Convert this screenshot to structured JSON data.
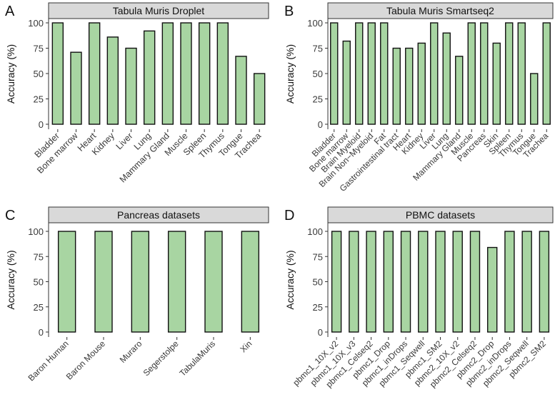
{
  "chart_data": [
    {
      "panel_label": "A",
      "type": "bar",
      "title": "Tabula Muris Droplet",
      "xlabel": "",
      "ylabel": "Accuracy (%)",
      "ylim": [
        0,
        100
      ],
      "yticks": [
        0,
        25,
        50,
        75,
        100
      ],
      "categories": [
        "Bladder",
        "Bone marrow",
        "Heart",
        "Kidney",
        "Liver",
        "Lung",
        "Mammary Gland",
        "Muscle",
        "Spleen",
        "Thymus",
        "Tongue",
        "Trachea"
      ],
      "values": [
        100,
        71,
        100,
        86,
        75,
        92,
        100,
        100,
        100,
        100,
        67,
        50
      ]
    },
    {
      "panel_label": "B",
      "type": "bar",
      "title": "Tabula Muris Smartseq2",
      "xlabel": "",
      "ylabel": "Accuracy (%)",
      "ylim": [
        0,
        100
      ],
      "yticks": [
        0,
        25,
        50,
        75,
        100
      ],
      "categories": [
        "Bladder",
        "Bone marrow",
        "Brain Myeloid",
        "Brain Non−Myeloid",
        "Fat",
        "Gastrointestinal tract",
        "Heart",
        "Kidney",
        "Liver",
        "Lung",
        "Mammary Gland",
        "Muscle",
        "Pancreas",
        "Skin",
        "Spleen",
        "Thymus",
        "Tongue",
        "Trachea"
      ],
      "values": [
        100,
        82,
        100,
        100,
        100,
        75,
        75,
        80,
        100,
        90,
        67,
        100,
        100,
        80,
        100,
        100,
        50,
        100
      ]
    },
    {
      "panel_label": "C",
      "type": "bar",
      "title": "Pancreas datasets",
      "xlabel": "",
      "ylabel": "Accuracy (%)",
      "ylim": [
        0,
        100
      ],
      "yticks": [
        0,
        25,
        50,
        75,
        100
      ],
      "categories": [
        "Baron Human",
        "Baron Mouse",
        "Muraro",
        "Segerstolpe",
        "TabulaMuris",
        "Xin"
      ],
      "values": [
        100,
        100,
        100,
        100,
        100,
        100
      ]
    },
    {
      "panel_label": "D",
      "type": "bar",
      "title": "PBMC datasets",
      "xlabel": "",
      "ylabel": "Accuracy (%)",
      "ylim": [
        0,
        100
      ],
      "yticks": [
        0,
        25,
        50,
        75,
        100
      ],
      "categories": [
        "pbmc1_10X_v2",
        "pbmc1_10X_v3",
        "pbmc1_Celseq2",
        "pbmc1_Drop",
        "pbmc1_inDrops",
        "pbmc1_Seqwell",
        "pbmc1_SM2",
        "pbmc2_10X_v2",
        "pbmc2_Celseq2",
        "pbmc2_Drop",
        "pbmc2_inDrops",
        "pbmc2_Seqwell",
        "pbmc2_SM2"
      ],
      "values": [
        100,
        100,
        100,
        100,
        100,
        100,
        100,
        100,
        100,
        84,
        100,
        100,
        100
      ]
    }
  ],
  "colors": {
    "bar_fill": "#a8d5a2",
    "bar_stroke": "#111111",
    "strip_fill": "#d9d9d9",
    "axis": "#333333"
  }
}
